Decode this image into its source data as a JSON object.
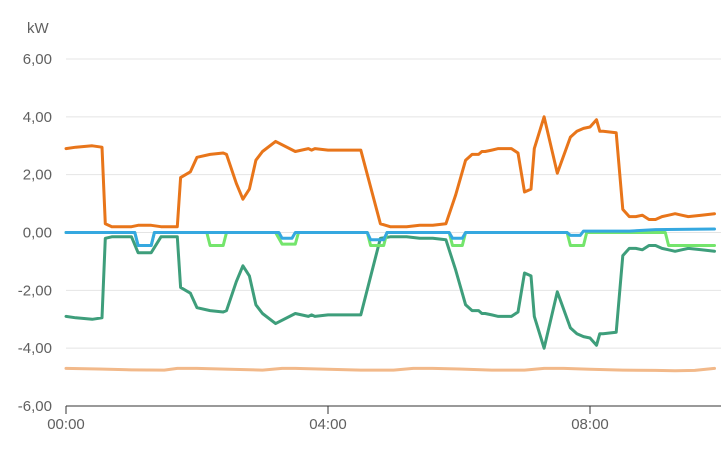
{
  "chart_data": {
    "type": "line",
    "unit_label": "kW",
    "y_ticks": [
      6,
      4,
      2,
      0,
      -2,
      -4,
      -6
    ],
    "y_tick_labels": [
      "6,00",
      "4,00",
      "2,00",
      "0,00",
      "-2,00",
      "-4,00",
      "-6,00"
    ],
    "ylim": [
      -6,
      6
    ],
    "x_ticks": [
      0,
      4,
      8
    ],
    "x_tick_labels": [
      "00:00",
      "04:00",
      "08:00"
    ],
    "xlim": [
      0,
      10.0
    ],
    "grid": true,
    "series": [
      {
        "color": "#e8751a",
        "x": [
          0,
          0.15,
          0.4,
          0.55,
          0.6,
          0.7,
          1.0,
          1.1,
          1.3,
          1.45,
          1.6,
          1.7,
          1.75,
          1.9,
          2.0,
          2.2,
          2.4,
          2.45,
          2.6,
          2.7,
          2.8,
          2.9,
          3.0,
          3.2,
          3.5,
          3.7,
          3.75,
          3.8,
          4.0,
          4.5,
          4.8,
          4.95,
          5.0,
          5.2,
          5.4,
          5.6,
          5.8,
          5.95,
          6.1,
          6.2,
          6.3,
          6.35,
          6.4,
          6.5,
          6.6,
          6.8,
          6.9,
          7.0,
          7.1,
          7.15,
          7.3,
          7.5,
          7.7,
          7.8,
          7.9,
          8.0,
          8.1,
          8.15,
          8.2,
          8.4,
          8.5,
          8.6,
          8.7,
          8.8,
          8.9,
          9.0,
          9.1,
          9.2,
          9.3,
          9.4,
          9.5,
          9.7,
          9.9
        ],
        "values": [
          2.9,
          2.95,
          3.0,
          2.95,
          0.3,
          0.2,
          0.2,
          0.25,
          0.25,
          0.2,
          0.2,
          0.2,
          1.9,
          2.1,
          2.6,
          2.7,
          2.75,
          2.7,
          1.7,
          1.15,
          1.5,
          2.5,
          2.8,
          3.15,
          2.8,
          2.9,
          2.85,
          2.9,
          2.85,
          2.85,
          0.3,
          0.2,
          0.2,
          0.2,
          0.25,
          0.25,
          0.3,
          1.3,
          2.5,
          2.7,
          2.7,
          2.8,
          2.8,
          2.85,
          2.9,
          2.9,
          2.75,
          1.4,
          1.5,
          2.9,
          4.0,
          2.05,
          3.3,
          3.5,
          3.6,
          3.65,
          3.9,
          3.5,
          3.5,
          3.45,
          0.8,
          0.55,
          0.55,
          0.6,
          0.45,
          0.45,
          0.55,
          0.6,
          0.65,
          0.6,
          0.55,
          0.6,
          0.65
        ]
      },
      {
        "color": "#3e9e7b",
        "x": [
          0,
          0.15,
          0.4,
          0.55,
          0.6,
          0.7,
          1.0,
          1.1,
          1.3,
          1.45,
          1.6,
          1.7,
          1.75,
          1.9,
          2.0,
          2.2,
          2.4,
          2.45,
          2.6,
          2.7,
          2.8,
          2.9,
          3.0,
          3.2,
          3.5,
          3.7,
          3.75,
          3.8,
          4.0,
          4.5,
          4.8,
          4.95,
          5.0,
          5.2,
          5.4,
          5.6,
          5.8,
          5.95,
          6.1,
          6.2,
          6.3,
          6.35,
          6.4,
          6.5,
          6.6,
          6.8,
          6.9,
          7.0,
          7.1,
          7.15,
          7.3,
          7.5,
          7.7,
          7.8,
          7.9,
          8.0,
          8.1,
          8.15,
          8.2,
          8.4,
          8.5,
          8.6,
          8.7,
          8.8,
          8.9,
          9.0,
          9.1,
          9.2,
          9.3,
          9.4,
          9.5,
          9.7,
          9.9
        ],
        "values": [
          -2.9,
          -2.95,
          -3.0,
          -2.95,
          -0.2,
          -0.15,
          -0.15,
          -0.7,
          -0.7,
          -0.15,
          -0.15,
          -0.15,
          -1.9,
          -2.1,
          -2.6,
          -2.7,
          -2.75,
          -2.7,
          -1.7,
          -1.15,
          -1.5,
          -2.5,
          -2.8,
          -3.15,
          -2.8,
          -2.9,
          -2.85,
          -2.9,
          -2.85,
          -2.85,
          -0.2,
          -0.15,
          -0.15,
          -0.15,
          -0.2,
          -0.2,
          -0.25,
          -1.3,
          -2.5,
          -2.7,
          -2.7,
          -2.8,
          -2.8,
          -2.85,
          -2.9,
          -2.9,
          -2.75,
          -1.4,
          -1.5,
          -2.9,
          -4.0,
          -2.05,
          -3.3,
          -3.5,
          -3.6,
          -3.65,
          -3.9,
          -3.5,
          -3.5,
          -3.45,
          -0.8,
          -0.55,
          -0.55,
          -0.6,
          -0.45,
          -0.45,
          -0.55,
          -0.6,
          -0.65,
          -0.6,
          -0.55,
          -0.6,
          -0.65
        ]
      },
      {
        "color": "#74e56c",
        "x": [
          0,
          1.05,
          1.1,
          1.3,
          1.35,
          2.15,
          2.2,
          2.4,
          2.45,
          3.2,
          3.3,
          3.5,
          3.55,
          4.6,
          4.65,
          4.85,
          4.9,
          5.85,
          5.9,
          6.05,
          6.1,
          7.65,
          7.7,
          7.9,
          7.95,
          9.15,
          9.2,
          9.35,
          9.9
        ],
        "values": [
          0.0,
          0.0,
          -0.45,
          -0.45,
          0.0,
          0.0,
          -0.45,
          -0.45,
          0.0,
          0.0,
          -0.4,
          -0.4,
          0.0,
          0.0,
          -0.45,
          -0.45,
          0.0,
          0.0,
          -0.45,
          -0.45,
          0.0,
          0.0,
          -0.45,
          -0.45,
          0.0,
          0.0,
          -0.45,
          -0.45,
          -0.45
        ]
      },
      {
        "color": "#35a8e0",
        "x": [
          0,
          1.05,
          1.1,
          1.3,
          1.35,
          3.25,
          3.3,
          3.45,
          3.5,
          4.6,
          4.65,
          4.85,
          4.9,
          5.85,
          5.9,
          6.05,
          6.1,
          7.65,
          7.7,
          7.85,
          7.9,
          8.6,
          9.0,
          9.9
        ],
        "values": [
          0.0,
          0.0,
          -0.45,
          -0.45,
          0.0,
          0.0,
          -0.2,
          -0.2,
          0.0,
          0.0,
          -0.25,
          -0.25,
          0.0,
          0.0,
          -0.2,
          -0.2,
          0.0,
          0.0,
          -0.1,
          -0.1,
          0.05,
          0.05,
          0.1,
          0.12
        ]
      },
      {
        "color": "#f2b98a",
        "x": [
          0,
          0.5,
          1.0,
          1.5,
          1.7,
          2.0,
          2.5,
          3.0,
          3.3,
          3.5,
          4.0,
          4.5,
          5.0,
          5.3,
          5.6,
          6.0,
          6.5,
          7.0,
          7.3,
          7.6,
          8.0,
          8.5,
          9.0,
          9.3,
          9.6,
          9.9
        ],
        "values": [
          -4.7,
          -4.72,
          -4.75,
          -4.76,
          -4.7,
          -4.7,
          -4.73,
          -4.76,
          -4.7,
          -4.7,
          -4.73,
          -4.76,
          -4.76,
          -4.7,
          -4.7,
          -4.72,
          -4.76,
          -4.76,
          -4.7,
          -4.7,
          -4.73,
          -4.76,
          -4.77,
          -4.78,
          -4.77,
          -4.7
        ]
      }
    ]
  }
}
